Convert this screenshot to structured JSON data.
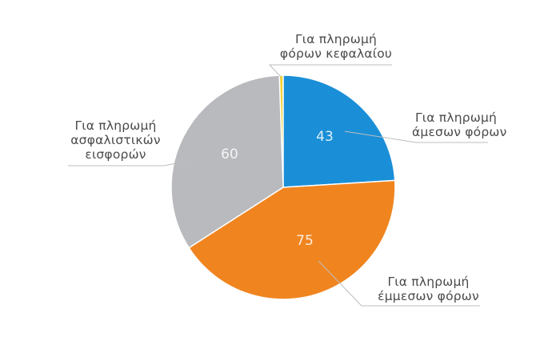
{
  "chart_data": {
    "type": "pie",
    "title": "",
    "categories": [
      "Για πληρωμή φόρων κεφαλαίου",
      "Για πληρωμή άμεσων φόρων",
      "Για πληρωμή έμμεσων φόρων",
      "Για πληρωμή ασφαλιστικών εισφορών"
    ],
    "values": [
      1,
      43,
      75,
      60
    ],
    "colors": [
      "#f2d33a",
      "#1a8fd8",
      "#f08520",
      "#b9babd"
    ],
    "data_labels": [
      "",
      "43",
      "75",
      "60"
    ],
    "start_angle_deg": -2,
    "direction": "clockwise",
    "legend": "none (callout labels with leader lines)"
  },
  "labels": {
    "capital": {
      "line1": "Για πληρωμή",
      "line2": "φόρων κεφαλαίου"
    },
    "direct": {
      "line1": "Για πληρωμή",
      "line2": "άμεσων φόρων"
    },
    "indirect": {
      "line1": "Για πληρωμή",
      "line2": "έμμεσων φόρων"
    },
    "insurance": {
      "line1": "Για πληρωμή",
      "line2": "ασφαλιστικών",
      "line3": "εισφορών"
    }
  },
  "values": {
    "direct": "43",
    "indirect": "75",
    "insurance": "60"
  }
}
